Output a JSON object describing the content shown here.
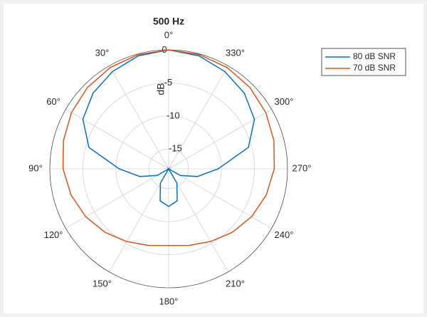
{
  "chart_data": {
    "type": "polar",
    "title": "500 Hz",
    "r_label": "dB",
    "theta_zero": "top",
    "theta_direction": "counterclockwise",
    "theta": [
      0,
      15,
      30,
      45,
      60,
      75,
      90,
      105,
      120,
      135,
      150,
      165,
      180,
      195,
      210,
      225,
      240,
      255,
      270,
      285,
      300,
      315,
      330,
      345
    ],
    "rlim": [
      -18,
      0
    ],
    "rticks": [
      0,
      -5,
      -10,
      -15
    ],
    "thetaticks": [
      {
        "value": 0,
        "label": "0°"
      },
      {
        "value": 30,
        "label": "30°"
      },
      {
        "value": 60,
        "label": "60°"
      },
      {
        "value": 90,
        "label": "90°"
      },
      {
        "value": 120,
        "label": "120°"
      },
      {
        "value": 150,
        "label": "150°"
      },
      {
        "value": 180,
        "label": "180°"
      },
      {
        "value": 210,
        "label": "210°"
      },
      {
        "value": 240,
        "label": "240°"
      },
      {
        "value": 270,
        "label": "270°"
      },
      {
        "value": 300,
        "label": "300°"
      },
      {
        "value": 330,
        "label": "330°"
      }
    ],
    "grid": true,
    "legend": "northeast",
    "series": [
      {
        "name": "80 dB SNR",
        "color": "#0072bd",
        "values": [
          0,
          -0.3,
          -1,
          -1.8,
          -3,
          -5.5,
          -10.5,
          -13.5,
          -16,
          -18,
          -15.5,
          -13,
          -12.3,
          -13,
          -15.5,
          -18,
          -16,
          -13.5,
          -10.5,
          -5.5,
          -3,
          -1.8,
          -1,
          -0.3
        ]
      },
      {
        "name": "70 dB SNR",
        "color": "#d95319",
        "values": [
          0,
          -0.1,
          -0.3,
          -0.6,
          -1,
          -1.5,
          -2,
          -2.7,
          -3.5,
          -4.4,
          -5.3,
          -6,
          -6.4,
          -6,
          -5.3,
          -4.4,
          -3.5,
          -2.7,
          -2,
          -1.5,
          -1,
          -0.6,
          -0.3,
          -0.1
        ]
      }
    ]
  }
}
